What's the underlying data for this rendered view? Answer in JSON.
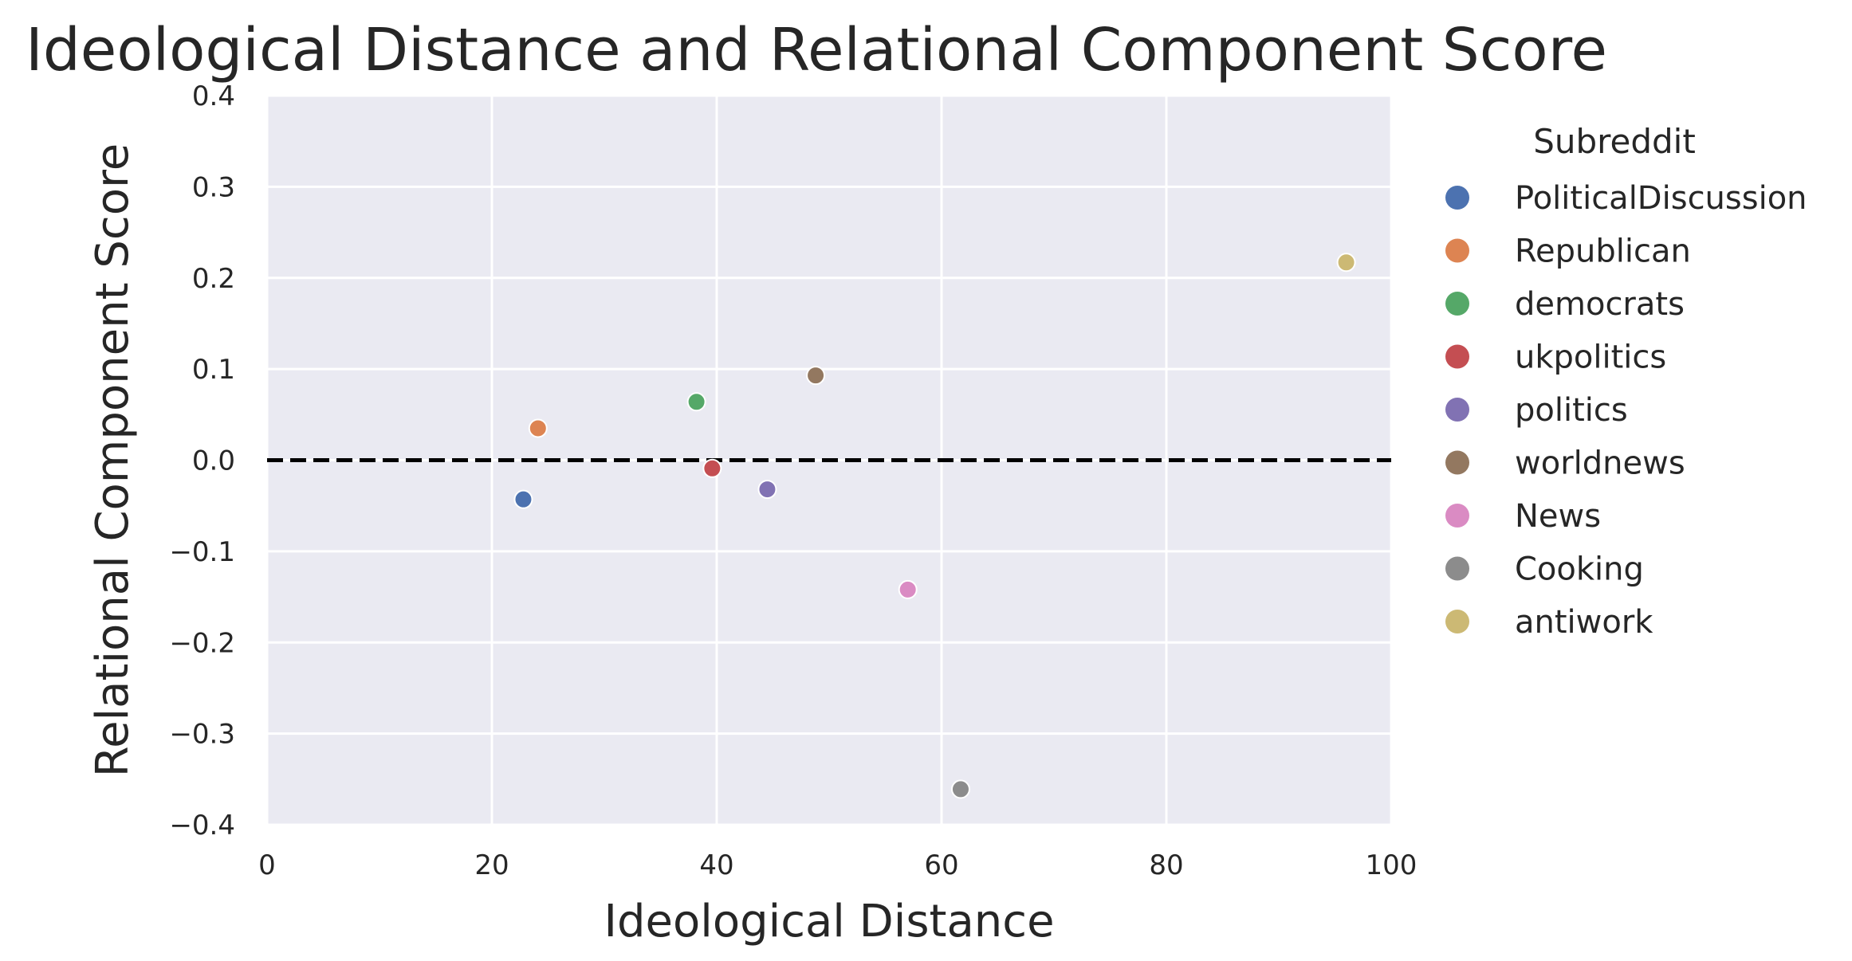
{
  "chart_data": {
    "type": "scatter",
    "title": "Ideological Distance and Relational Component Score",
    "xlabel": "Ideological Distance",
    "ylabel": "Relational Component Score",
    "xlim": [
      0,
      100
    ],
    "ylim": [
      -0.4,
      0.4
    ],
    "x_ticks": [
      0,
      20,
      40,
      60,
      80,
      100
    ],
    "x_tick_labels": [
      "0",
      "20",
      "40",
      "60",
      "80",
      "100"
    ],
    "y_ticks": [
      -0.4,
      -0.3,
      -0.2,
      -0.1,
      0.0,
      0.1,
      0.2,
      0.3,
      0.4
    ],
    "y_tick_labels": [
      "−0.4",
      "−0.3",
      "−0.2",
      "−0.1",
      "0.0",
      "0.1",
      "0.2",
      "0.3",
      "0.4"
    ],
    "grid": true,
    "reference_line": {
      "y": 0.0,
      "style": "dashed",
      "color": "#000000"
    },
    "legend": {
      "title": "Subreddit",
      "placement": "outside-right"
    },
    "background_color": "#eaeaf2",
    "grid_color": "#ffffff",
    "series": [
      {
        "name": "PoliticalDiscussion",
        "color": "#4c72b0",
        "x": 22.8,
        "y": -0.043
      },
      {
        "name": "Republican",
        "color": "#dd8452",
        "x": 24.1,
        "y": 0.035
      },
      {
        "name": "democrats",
        "color": "#55a868",
        "x": 38.2,
        "y": 0.064
      },
      {
        "name": "ukpolitics",
        "color": "#c44e52",
        "x": 39.6,
        "y": -0.009
      },
      {
        "name": "politics",
        "color": "#8172b3",
        "x": 44.5,
        "y": -0.032
      },
      {
        "name": "worldnews",
        "color": "#937860",
        "x": 48.8,
        "y": 0.093
      },
      {
        "name": "News",
        "color": "#da8bc3",
        "x": 57.0,
        "y": -0.142
      },
      {
        "name": "Cooking",
        "color": "#8c8c8c",
        "x": 61.7,
        "y": -0.361
      },
      {
        "name": "antiwork",
        "color": "#ccb974",
        "x": 96.0,
        "y": 0.217
      }
    ]
  }
}
